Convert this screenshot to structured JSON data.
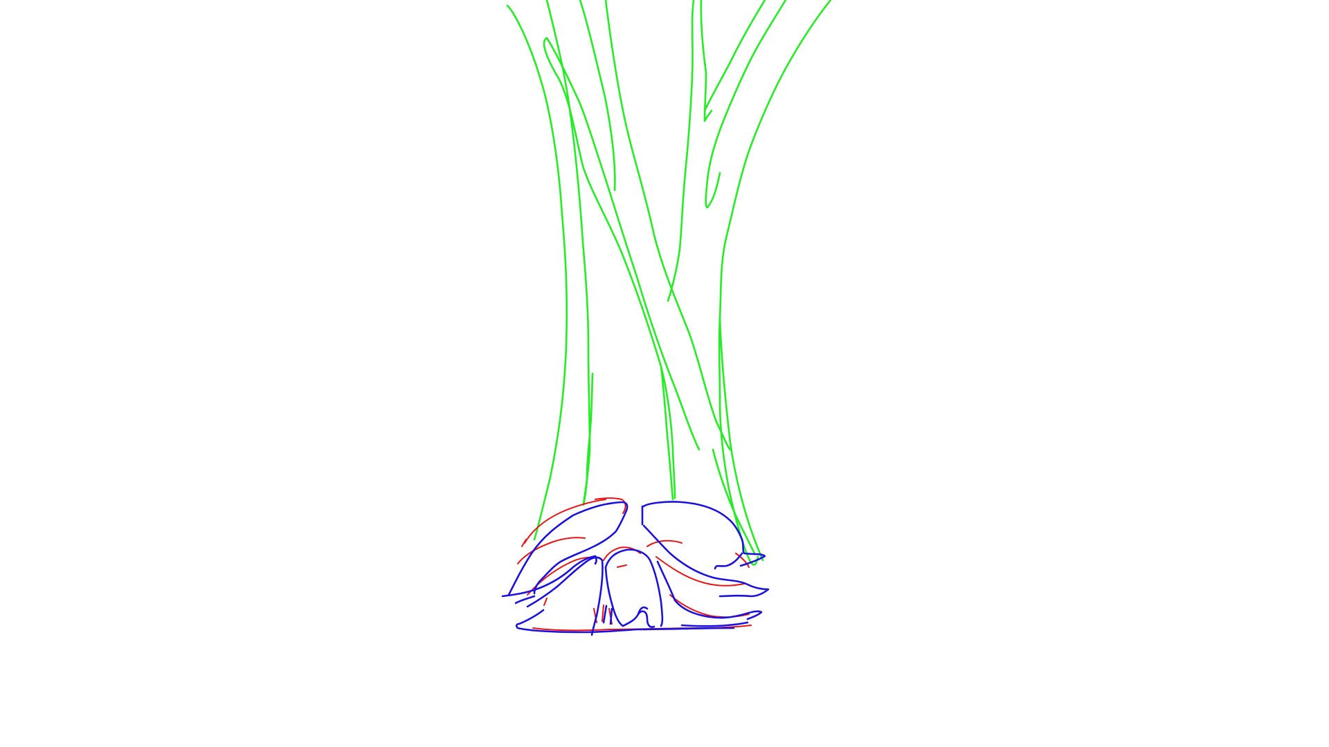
{
  "canvas": {
    "background": "#ffffff"
  },
  "colors": {
    "trunk": "#22ee22",
    "roots_outline": "#1a10e0",
    "roots_sketch": "#ee1111"
  }
}
